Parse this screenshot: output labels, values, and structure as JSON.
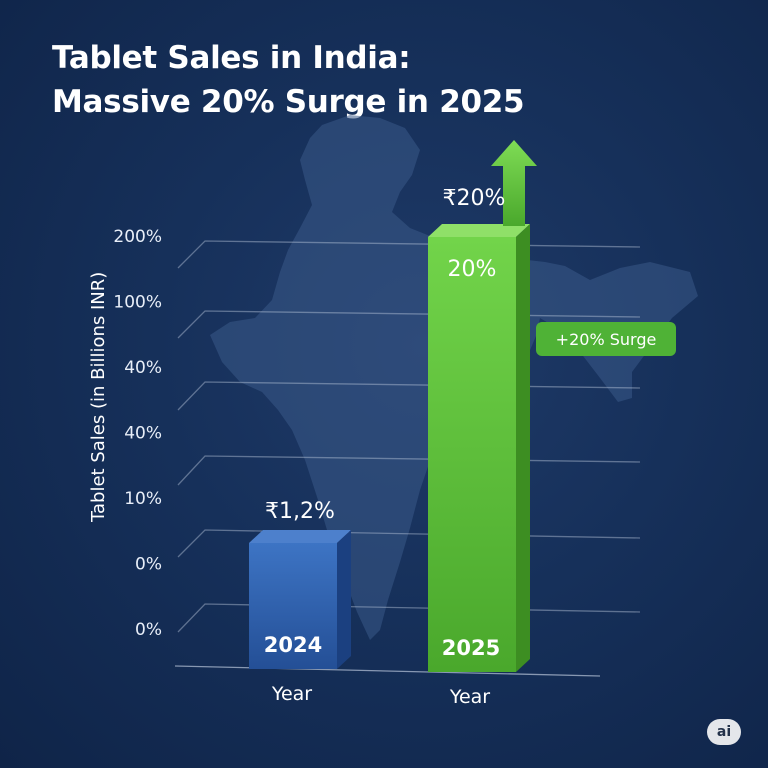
{
  "title_line1": "Tablet Sales in India:",
  "title_line2": "Massive 20% Surge in 2025",
  "badge": "ai",
  "colors": {
    "background": "#16305a",
    "bar_2024": "#2f63b0",
    "bar_2025": "#5fc23a",
    "callout": "#4fb236",
    "map": "#3a5a88"
  },
  "chart_data": {
    "type": "bar",
    "title": "Tablet Sales in India: Massive 20% Surge in 2025",
    "ylabel": "Tablet Sales (in Billions INR)",
    "yticks": [
      "200%",
      "100%",
      "40%",
      "40%",
      "10%",
      "0%",
      "0%"
    ],
    "categories": [
      "2024",
      "2025"
    ],
    "xlabels": [
      "Year",
      "Year"
    ],
    "value_labels_top": [
      "₹1,2%",
      "₹20%"
    ],
    "value_labels_inside": [
      "",
      "20%"
    ],
    "values": [
      0.2,
      0.65
    ],
    "callout": "+20% Surge",
    "grid": true
  }
}
